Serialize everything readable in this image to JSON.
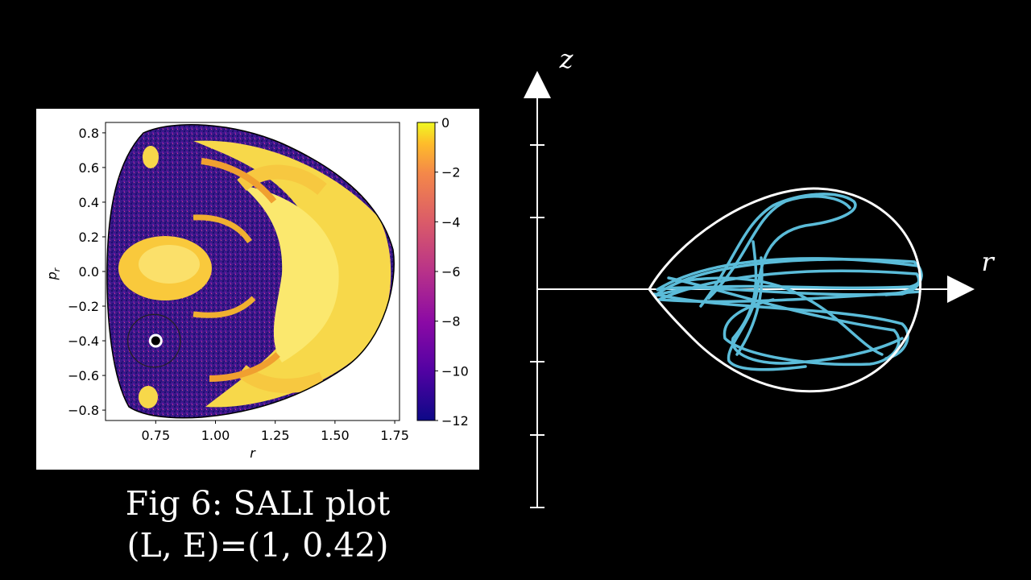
{
  "caption": {
    "line1": "Fig 6: SALI plot",
    "line2": "(L, E)=(1, 0.42)"
  },
  "chart_data": [
    {
      "type": "heatmap",
      "title": "",
      "xlabel": "r",
      "ylabel": "p_r",
      "xlim": [
        0.54,
        1.77
      ],
      "ylim": [
        -0.86,
        0.86
      ],
      "x_ticks": [
        "0.75",
        "1.00",
        "1.25",
        "1.50",
        "1.75"
      ],
      "x_tick_values": [
        0.75,
        1.0,
        1.25,
        1.5,
        1.75
      ],
      "y_ticks": [
        "0.8",
        "0.6",
        "0.4",
        "0.2",
        "0.0",
        "−0.2",
        "−0.4",
        "−0.6",
        "−0.8"
      ],
      "y_tick_values": [
        0.8,
        0.6,
        0.4,
        0.2,
        0.0,
        -0.2,
        -0.4,
        -0.6,
        -0.8
      ],
      "colorbar": {
        "range": [
          -12,
          0
        ],
        "ticks": [
          "0",
          "−2",
          "−4",
          "−6",
          "−8",
          "−10",
          "−12"
        ],
        "tick_values": [
          0,
          -2,
          -4,
          -6,
          -8,
          -10,
          -12
        ],
        "colormap": "plasma"
      },
      "marked_point": {
        "r": 0.75,
        "p_r": -0.4
      },
      "marked_circle_radius_r": 0.22,
      "grid": false
    },
    {
      "type": "line",
      "xlabel": "r",
      "ylabel": "z",
      "series": [
        {
          "label": "zero-velocity boundary",
          "color": "#ffffff"
        },
        {
          "label": "orbit",
          "color": "#5bbcd9"
        }
      ]
    }
  ],
  "colors": {
    "background": "#000000",
    "panel": "#ffffff",
    "orbit": "#5bbcd9",
    "axis": "#ffffff"
  }
}
